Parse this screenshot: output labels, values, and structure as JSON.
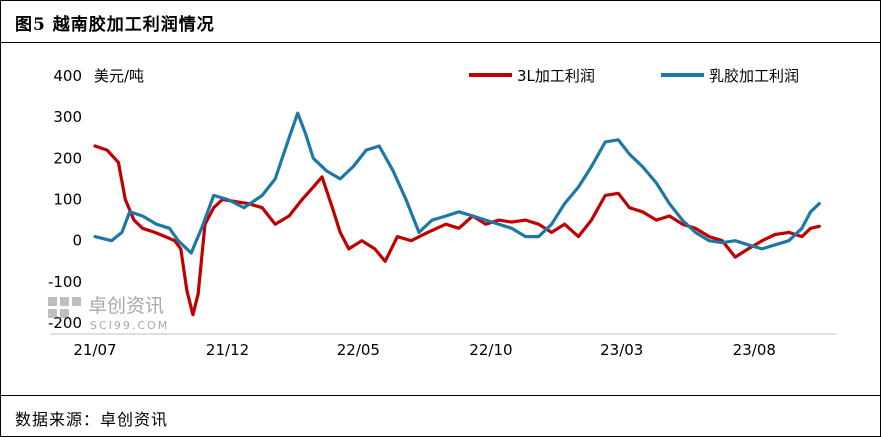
{
  "title": "图5  越南胶加工利润情况",
  "source": "数据来源：卓创资讯",
  "watermark": {
    "text": "卓创资讯",
    "url": "SCI99.COM"
  },
  "chart_data": {
    "type": "line",
    "ylabel": "美元/吨",
    "ylim": [
      -200,
      400
    ],
    "yticks": [
      -200,
      -100,
      0,
      100,
      200,
      300,
      400
    ],
    "xlim": [
      "2021-07-01",
      "2023-11-01"
    ],
    "xticks": [
      {
        "label": "21/07",
        "date": "2021-07-01"
      },
      {
        "label": "21/12",
        "date": "2021-12-01"
      },
      {
        "label": "22/05",
        "date": "2022-05-01"
      },
      {
        "label": "22/10",
        "date": "2022-10-01"
      },
      {
        "label": "23/03",
        "date": "2023-03-01"
      },
      {
        "label": "23/08",
        "date": "2023-08-01"
      }
    ],
    "series": [
      {
        "name": "3L加工利润",
        "color": "#c00000",
        "points": [
          [
            "2021-07-01",
            230
          ],
          [
            "2021-07-15",
            220
          ],
          [
            "2021-07-28",
            190
          ],
          [
            "2021-08-05",
            100
          ],
          [
            "2021-08-15",
            50
          ],
          [
            "2021-08-25",
            30
          ],
          [
            "2021-09-08",
            20
          ],
          [
            "2021-09-20",
            10
          ],
          [
            "2021-10-01",
            0
          ],
          [
            "2021-10-08",
            -20
          ],
          [
            "2021-10-15",
            -120
          ],
          [
            "2021-10-22",
            -180
          ],
          [
            "2021-10-28",
            -130
          ],
          [
            "2021-11-05",
            40
          ],
          [
            "2021-11-15",
            80
          ],
          [
            "2021-11-25",
            100
          ],
          [
            "2021-12-10",
            95
          ],
          [
            "2021-12-25",
            90
          ],
          [
            "2022-01-10",
            80
          ],
          [
            "2022-01-25",
            40
          ],
          [
            "2022-02-10",
            60
          ],
          [
            "2022-02-25",
            100
          ],
          [
            "2022-03-10",
            130
          ],
          [
            "2022-03-20",
            155
          ],
          [
            "2022-04-01",
            80
          ],
          [
            "2022-04-10",
            20
          ],
          [
            "2022-04-20",
            -20
          ],
          [
            "2022-05-05",
            0
          ],
          [
            "2022-05-20",
            -20
          ],
          [
            "2022-06-01",
            -50
          ],
          [
            "2022-06-15",
            10
          ],
          [
            "2022-07-01",
            0
          ],
          [
            "2022-07-20",
            20
          ],
          [
            "2022-08-10",
            40
          ],
          [
            "2022-08-25",
            30
          ],
          [
            "2022-09-10",
            60
          ],
          [
            "2022-09-25",
            40
          ],
          [
            "2022-10-10",
            50
          ],
          [
            "2022-10-25",
            45
          ],
          [
            "2022-11-10",
            50
          ],
          [
            "2022-11-25",
            40
          ],
          [
            "2022-12-10",
            20
          ],
          [
            "2022-12-25",
            40
          ],
          [
            "2023-01-10",
            10
          ],
          [
            "2023-01-25",
            50
          ],
          [
            "2023-02-10",
            110
          ],
          [
            "2023-02-25",
            115
          ],
          [
            "2023-03-10",
            80
          ],
          [
            "2023-03-25",
            70
          ],
          [
            "2023-04-10",
            50
          ],
          [
            "2023-04-25",
            60
          ],
          [
            "2023-05-10",
            40
          ],
          [
            "2023-05-25",
            30
          ],
          [
            "2023-06-10",
            10
          ],
          [
            "2023-06-25",
            0
          ],
          [
            "2023-07-10",
            -40
          ],
          [
            "2023-07-25",
            -20
          ],
          [
            "2023-08-10",
            0
          ],
          [
            "2023-08-25",
            15
          ],
          [
            "2023-09-10",
            20
          ],
          [
            "2023-09-25",
            10
          ],
          [
            "2023-10-05",
            30
          ],
          [
            "2023-10-15",
            35
          ]
        ]
      },
      {
        "name": "乳胶加工利润",
        "color": "#1f77a4",
        "points": [
          [
            "2021-07-01",
            10
          ],
          [
            "2021-07-20",
            0
          ],
          [
            "2021-08-01",
            20
          ],
          [
            "2021-08-10",
            70
          ],
          [
            "2021-08-25",
            60
          ],
          [
            "2021-09-10",
            40
          ],
          [
            "2021-09-25",
            30
          ],
          [
            "2021-10-05",
            0
          ],
          [
            "2021-10-20",
            -30
          ],
          [
            "2021-11-01",
            30
          ],
          [
            "2021-11-15",
            110
          ],
          [
            "2021-12-01",
            100
          ],
          [
            "2021-12-20",
            80
          ],
          [
            "2022-01-10",
            110
          ],
          [
            "2022-01-25",
            150
          ],
          [
            "2022-02-10",
            250
          ],
          [
            "2022-02-20",
            310
          ],
          [
            "2022-03-01",
            260
          ],
          [
            "2022-03-10",
            200
          ],
          [
            "2022-03-25",
            170
          ],
          [
            "2022-04-10",
            150
          ],
          [
            "2022-04-25",
            180
          ],
          [
            "2022-05-10",
            220
          ],
          [
            "2022-05-25",
            230
          ],
          [
            "2022-06-10",
            170
          ],
          [
            "2022-06-25",
            100
          ],
          [
            "2022-07-10",
            20
          ],
          [
            "2022-07-25",
            50
          ],
          [
            "2022-08-10",
            60
          ],
          [
            "2022-08-25",
            70
          ],
          [
            "2022-09-10",
            60
          ],
          [
            "2022-09-25",
            50
          ],
          [
            "2022-10-10",
            40
          ],
          [
            "2022-10-25",
            30
          ],
          [
            "2022-11-10",
            10
          ],
          [
            "2022-11-25",
            10
          ],
          [
            "2022-12-10",
            40
          ],
          [
            "2022-12-25",
            90
          ],
          [
            "2023-01-10",
            130
          ],
          [
            "2023-01-25",
            180
          ],
          [
            "2023-02-10",
            240
          ],
          [
            "2023-02-25",
            245
          ],
          [
            "2023-03-10",
            210
          ],
          [
            "2023-03-25",
            180
          ],
          [
            "2023-04-10",
            140
          ],
          [
            "2023-04-25",
            90
          ],
          [
            "2023-05-10",
            50
          ],
          [
            "2023-05-25",
            20
          ],
          [
            "2023-06-10",
            0
          ],
          [
            "2023-06-25",
            -5
          ],
          [
            "2023-07-10",
            0
          ],
          [
            "2023-07-25",
            -10
          ],
          [
            "2023-08-10",
            -20
          ],
          [
            "2023-08-25",
            -10
          ],
          [
            "2023-09-10",
            0
          ],
          [
            "2023-09-25",
            30
          ],
          [
            "2023-10-05",
            70
          ],
          [
            "2023-10-15",
            90
          ]
        ]
      }
    ]
  }
}
